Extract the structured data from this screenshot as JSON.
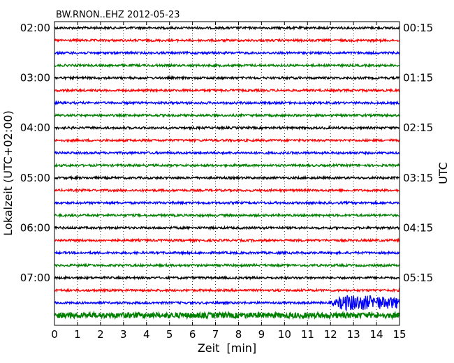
{
  "chart_data": {
    "type": "line",
    "title": "BW.RNON..EHZ 2012-05-23",
    "xlabel": "Zeit  [min]",
    "ylabel_left": "Lokalzeit (UTC+02:00)",
    "ylabel_right": "UTC",
    "xlim": [
      0,
      15
    ],
    "x_ticks": [
      "0",
      "1",
      "2",
      "3",
      "4",
      "5",
      "6",
      "7",
      "8",
      "9",
      "10",
      "11",
      "12",
      "13",
      "14",
      "15"
    ],
    "grid": "vertical dotted at each minute",
    "row_interval_min": 15,
    "colors_cycle": [
      "#000000",
      "#ff0000",
      "#0000ff",
      "#008000"
    ],
    "left_tick_labels": [
      "02:00",
      "03:00",
      "04:00",
      "05:00",
      "06:00",
      "07:00"
    ],
    "right_tick_labels": [
      "00:15",
      "01:15",
      "02:15",
      "03:15",
      "04:15",
      "05:15"
    ],
    "rows": [
      {
        "local_time": "02:00",
        "color": "#000000",
        "amplitude": 1
      },
      {
        "local_time": "02:15",
        "color": "#ff0000",
        "amplitude": 1
      },
      {
        "local_time": "02:30",
        "color": "#0000ff",
        "amplitude": 1
      },
      {
        "local_time": "02:45",
        "color": "#008000",
        "amplitude": 1
      },
      {
        "local_time": "03:00",
        "color": "#000000",
        "amplitude": 1
      },
      {
        "local_time": "03:15",
        "color": "#ff0000",
        "amplitude": 1
      },
      {
        "local_time": "03:30",
        "color": "#0000ff",
        "amplitude": 1
      },
      {
        "local_time": "03:45",
        "color": "#008000",
        "amplitude": 1
      },
      {
        "local_time": "04:00",
        "color": "#000000",
        "amplitude": 1
      },
      {
        "local_time": "04:15",
        "color": "#ff0000",
        "amplitude": 1
      },
      {
        "local_time": "04:30",
        "color": "#0000ff",
        "amplitude": 1
      },
      {
        "local_time": "04:45",
        "color": "#008000",
        "amplitude": 1
      },
      {
        "local_time": "05:00",
        "color": "#000000",
        "amplitude": 1
      },
      {
        "local_time": "05:15",
        "color": "#ff0000",
        "amplitude": 1
      },
      {
        "local_time": "05:30",
        "color": "#0000ff",
        "amplitude": 1
      },
      {
        "local_time": "05:45",
        "color": "#008000",
        "amplitude": 1
      },
      {
        "local_time": "06:00",
        "color": "#000000",
        "amplitude": 1
      },
      {
        "local_time": "06:15",
        "color": "#ff0000",
        "amplitude": 1
      },
      {
        "local_time": "06:30",
        "color": "#0000ff",
        "amplitude": 1
      },
      {
        "local_time": "06:45",
        "color": "#008000",
        "amplitude": 1
      },
      {
        "local_time": "07:00",
        "color": "#000000",
        "amplitude": 1
      },
      {
        "local_time": "07:15",
        "color": "#ff0000",
        "amplitude": 1
      },
      {
        "local_time": "07:30",
        "color": "#0000ff",
        "amplitude": 1,
        "event": {
          "start_min": 12.0,
          "amplitude": 3
        }
      },
      {
        "local_time": "07:45",
        "color": "#008000",
        "amplitude": 2.5
      }
    ]
  }
}
